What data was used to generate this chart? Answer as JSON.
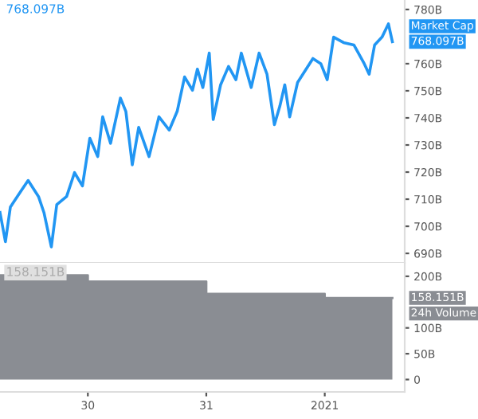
{
  "chart_data": [
    {
      "type": "line",
      "xlim": [
        "2020-12-29T06:12",
        "2021-01-01T16:12"
      ],
      "ylim": [
        686.5,
        783.5
      ],
      "tick_labels": "y",
      "yticks": [
        {
          "value": 690,
          "label": "690B"
        },
        {
          "value": 700,
          "label": "700B"
        },
        {
          "value": 710,
          "label": "710B"
        },
        {
          "value": 720,
          "label": "720B"
        },
        {
          "value": 730,
          "label": "730B"
        },
        {
          "value": 740,
          "label": "740B"
        },
        {
          "value": 750,
          "label": "750B"
        },
        {
          "value": 760,
          "label": "760B"
        },
        {
          "value": 780,
          "label": "780B"
        }
      ],
      "annotations": [
        "768.097B",
        "768.097B"
      ],
      "series": [
        {
          "name": "Market Cap",
          "color": "#2196f3",
          "x": [
            "2020-12-29T06:12",
            "2020-12-29T07:18",
            "2020-12-29T08:18",
            "2020-12-29T10:24",
            "2020-12-29T11:54",
            "2020-12-29T14:00",
            "2020-12-29T15:06",
            "2020-12-29T16:36",
            "2020-12-29T17:42",
            "2020-12-29T19:42",
            "2020-12-29T21:18",
            "2020-12-29T22:54",
            "2020-12-30T00:24",
            "2020-12-30T02:00",
            "2020-12-30T03:00",
            "2020-12-30T04:36",
            "2020-12-30T06:36",
            "2020-12-30T07:42",
            "2020-12-30T09:00",
            "2020-12-30T10:18",
            "2020-12-30T12:24",
            "2020-12-30T14:24",
            "2020-12-30T16:30",
            "2020-12-30T18:06",
            "2020-12-30T19:36",
            "2020-12-30T21:12",
            "2020-12-30T22:12",
            "2020-12-30T23:18",
            "2020-12-31T00:36",
            "2020-12-31T01:24",
            "2020-12-31T02:54",
            "2020-12-31T04:30",
            "2020-12-31T06:00",
            "2020-12-31T07:06",
            "2020-12-31T09:06",
            "2020-12-31T10:42",
            "2020-12-31T12:18",
            "2020-12-31T13:48",
            "2020-12-31T14:54",
            "2020-12-31T15:54",
            "2020-12-31T16:54",
            "2020-12-31T18:30",
            "2020-12-31T21:36",
            "2020-12-31T23:12",
            "2021-01-01T00:30",
            "2021-01-01T01:48",
            "2021-01-01T03:48",
            "2021-01-01T05:54",
            "2021-01-01T08:00",
            "2021-01-01T09:00",
            "2021-01-01T10:06",
            "2021-01-01T11:36",
            "2021-01-01T12:54",
            "2021-01-01T13:42"
          ],
          "values": [
            705.1,
            694.3,
            707.1,
            712.9,
            716.9,
            711.0,
            705.1,
            692.4,
            708.0,
            711.0,
            719.8,
            714.9,
            732.5,
            725.7,
            740.4,
            730.6,
            747.3,
            742.4,
            722.7,
            736.5,
            725.7,
            740.4,
            735.5,
            742.4,
            755.1,
            750.2,
            758.0,
            751.2,
            763.9,
            739.4,
            752.2,
            759.0,
            754.1,
            763.9,
            751.2,
            763.9,
            756.1,
            737.5,
            744.3,
            752.2,
            740.4,
            753.1,
            761.9,
            760.0,
            754.1,
            769.8,
            767.8,
            766.9,
            760.0,
            756.1,
            766.9,
            769.8,
            774.7,
            768.1
          ]
        }
      ]
    },
    {
      "type": "area",
      "xlim": [
        "2020-12-29T06:12",
        "2021-01-01T16:12"
      ],
      "ylim": [
        -24,
        226
      ],
      "xticks": [
        {
          "value": "2020-12-30",
          "label": "30"
        },
        {
          "value": "2020-12-31",
          "label": "31"
        },
        {
          "value": "2021-01-01",
          "label": "2021"
        }
      ],
      "yticks": [
        {
          "value": 0,
          "label": "0"
        },
        {
          "value": 50,
          "label": "50B"
        },
        {
          "value": 100,
          "label": "100B"
        },
        {
          "value": 200,
          "label": "200B"
        }
      ],
      "annotations": [
        "158.151B",
        "158.151B"
      ],
      "series": [
        {
          "name": "24h Volume",
          "color": "#8a8d93",
          "x": [
            "2020-12-29T06:12",
            "2020-12-30T00:00",
            "2020-12-31T00:00",
            "2021-01-01T00:00",
            "2021-01-01T13:42"
          ],
          "values": [
            202,
            190,
            166,
            158,
            158
          ]
        }
      ]
    }
  ]
}
